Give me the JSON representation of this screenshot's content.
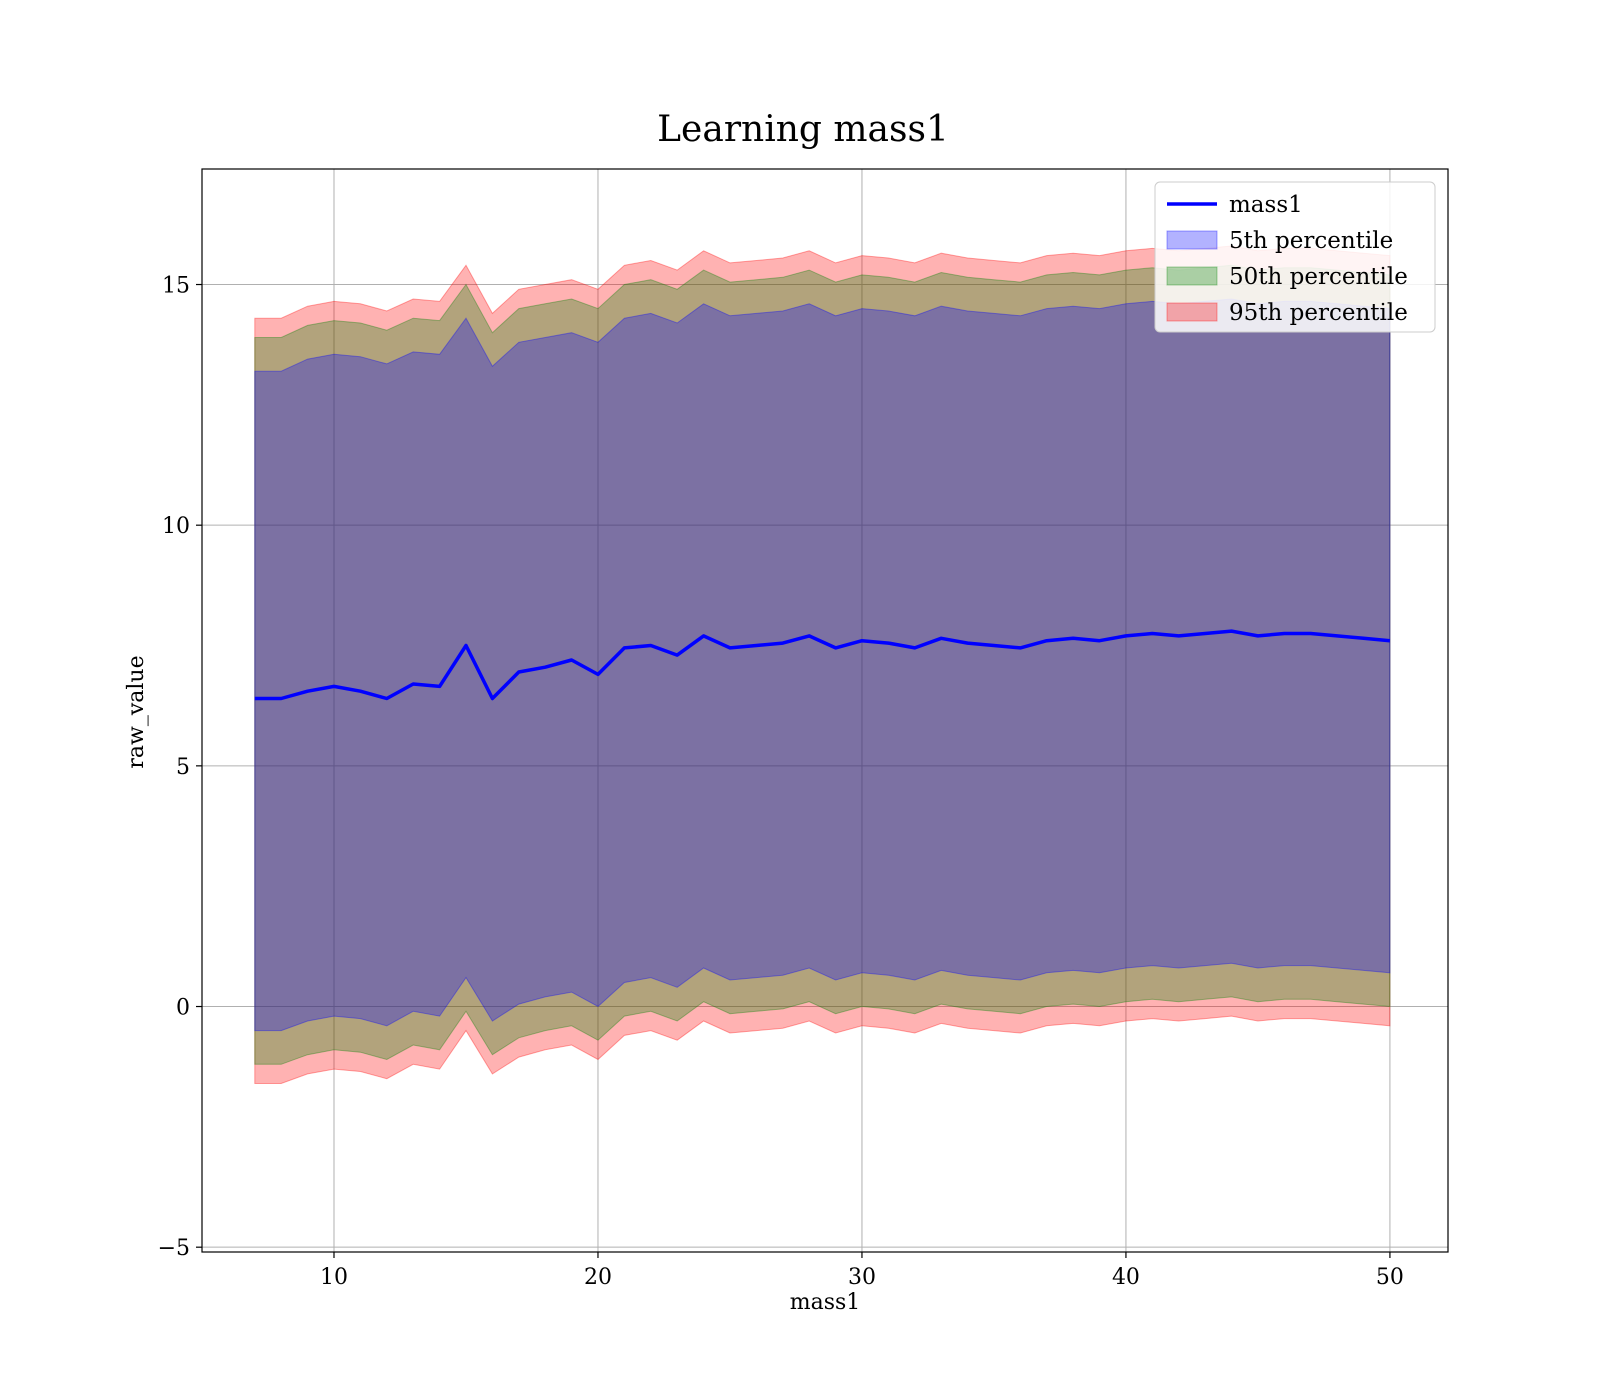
{
  "chart_data": {
    "type": "line",
    "title": "Learning mass1",
    "xlabel": "mass1",
    "ylabel": "raw_value",
    "xlim": [
      5,
      52.2
    ],
    "ylim": [
      -5.1,
      17.4
    ],
    "xticks": [
      10,
      20,
      30,
      40,
      50
    ],
    "xtick_labels": [
      "10",
      "20",
      "30",
      "40",
      "50"
    ],
    "yticks": [
      -5,
      0,
      5,
      10,
      15
    ],
    "ytick_labels": [
      "−5",
      "0",
      "5",
      "10",
      "15"
    ],
    "grid": true,
    "legend_position": "top-right",
    "series": [
      {
        "name": "mass1",
        "kind": "line",
        "color": "#0000ff",
        "x": [
          7,
          8,
          9,
          10,
          11,
          12,
          13,
          14,
          15,
          16,
          17,
          18,
          19,
          20,
          21,
          22,
          23,
          24,
          25,
          26,
          27,
          28,
          29,
          30,
          31,
          32,
          33,
          34,
          35,
          36,
          37,
          38,
          39,
          40,
          41,
          42,
          43,
          44,
          45,
          46,
          47,
          48,
          49,
          50
        ],
        "values": [
          6.4,
          6.4,
          6.55,
          6.65,
          6.55,
          6.4,
          6.7,
          6.65,
          7.5,
          6.4,
          6.95,
          7.05,
          7.2,
          6.9,
          7.45,
          7.5,
          7.3,
          7.7,
          7.45,
          7.5,
          7.55,
          7.7,
          7.45,
          7.6,
          7.55,
          7.45,
          7.65,
          7.55,
          7.5,
          7.45,
          7.6,
          7.65,
          7.6,
          7.7,
          7.75,
          7.7,
          7.75,
          7.8,
          7.7,
          7.75,
          7.75,
          7.7,
          7.65,
          7.6
        ]
      },
      {
        "name": "5th percentile",
        "kind": "band",
        "color": "#0000ff",
        "x": [
          7,
          8,
          9,
          10,
          11,
          12,
          13,
          14,
          15,
          16,
          17,
          18,
          19,
          20,
          21,
          22,
          23,
          24,
          25,
          26,
          27,
          28,
          29,
          30,
          31,
          32,
          33,
          34,
          35,
          36,
          37,
          38,
          39,
          40,
          41,
          42,
          43,
          44,
          45,
          46,
          47,
          48,
          49,
          50
        ],
        "lower": [
          -0.5,
          -0.5,
          -0.3,
          -0.2,
          -0.25,
          -0.4,
          -0.1,
          -0.2,
          0.6,
          -0.3,
          0.05,
          0.2,
          0.3,
          0.0,
          0.5,
          0.6,
          0.4,
          0.8,
          0.55,
          0.6,
          0.65,
          0.8,
          0.55,
          0.7,
          0.65,
          0.55,
          0.75,
          0.65,
          0.6,
          0.55,
          0.7,
          0.75,
          0.7,
          0.8,
          0.85,
          0.8,
          0.85,
          0.9,
          0.8,
          0.85,
          0.85,
          0.8,
          0.75,
          0.7
        ],
        "upper": [
          13.2,
          13.2,
          13.45,
          13.55,
          13.5,
          13.35,
          13.6,
          13.55,
          14.3,
          13.3,
          13.8,
          13.9,
          14.0,
          13.8,
          14.3,
          14.4,
          14.2,
          14.6,
          14.35,
          14.4,
          14.45,
          14.6,
          14.35,
          14.5,
          14.45,
          14.35,
          14.55,
          14.45,
          14.4,
          14.35,
          14.5,
          14.55,
          14.5,
          14.6,
          14.65,
          14.6,
          14.65,
          14.7,
          14.6,
          14.65,
          14.65,
          14.6,
          14.55,
          14.5
        ]
      },
      {
        "name": "50th percentile",
        "kind": "band",
        "color": "#008000",
        "x": [
          7,
          8,
          9,
          10,
          11,
          12,
          13,
          14,
          15,
          16,
          17,
          18,
          19,
          20,
          21,
          22,
          23,
          24,
          25,
          26,
          27,
          28,
          29,
          30,
          31,
          32,
          33,
          34,
          35,
          36,
          37,
          38,
          39,
          40,
          41,
          42,
          43,
          44,
          45,
          46,
          47,
          48,
          49,
          50
        ],
        "lower": [
          -1.2,
          -1.2,
          -1.0,
          -0.9,
          -0.95,
          -1.1,
          -0.8,
          -0.9,
          -0.1,
          -1.0,
          -0.65,
          -0.5,
          -0.4,
          -0.7,
          -0.2,
          -0.1,
          -0.3,
          0.1,
          -0.15,
          -0.1,
          -0.05,
          0.1,
          -0.15,
          0.0,
          -0.05,
          -0.15,
          0.05,
          -0.05,
          -0.1,
          -0.15,
          0.0,
          0.05,
          0.0,
          0.1,
          0.15,
          0.1,
          0.15,
          0.2,
          0.1,
          0.15,
          0.15,
          0.1,
          0.05,
          0.0
        ],
        "upper": [
          13.9,
          13.9,
          14.15,
          14.25,
          14.2,
          14.05,
          14.3,
          14.25,
          15.0,
          14.0,
          14.5,
          14.6,
          14.7,
          14.5,
          15.0,
          15.1,
          14.9,
          15.3,
          15.05,
          15.1,
          15.15,
          15.3,
          15.05,
          15.2,
          15.15,
          15.05,
          15.25,
          15.15,
          15.1,
          15.05,
          15.2,
          15.25,
          15.2,
          15.3,
          15.35,
          15.3,
          15.35,
          15.4,
          15.3,
          15.35,
          15.35,
          15.3,
          15.25,
          15.2
        ]
      },
      {
        "name": "95th percentile",
        "kind": "band",
        "color": "#ff0000",
        "x": [
          7,
          8,
          9,
          10,
          11,
          12,
          13,
          14,
          15,
          16,
          17,
          18,
          19,
          20,
          21,
          22,
          23,
          24,
          25,
          26,
          27,
          28,
          29,
          30,
          31,
          32,
          33,
          34,
          35,
          36,
          37,
          38,
          39,
          40,
          41,
          42,
          43,
          44,
          45,
          46,
          47,
          48,
          49,
          50
        ],
        "lower": [
          -1.6,
          -1.6,
          -1.4,
          -1.3,
          -1.35,
          -1.5,
          -1.2,
          -1.3,
          -0.5,
          -1.4,
          -1.05,
          -0.9,
          -0.8,
          -1.1,
          -0.6,
          -0.5,
          -0.7,
          -0.3,
          -0.55,
          -0.5,
          -0.45,
          -0.3,
          -0.55,
          -0.4,
          -0.45,
          -0.55,
          -0.35,
          -0.45,
          -0.5,
          -0.55,
          -0.4,
          -0.35,
          -0.4,
          -0.3,
          -0.25,
          -0.3,
          -0.25,
          -0.2,
          -0.3,
          -0.25,
          -0.25,
          -0.3,
          -0.35,
          -0.4
        ],
        "upper": [
          14.3,
          14.3,
          14.55,
          14.65,
          14.6,
          14.45,
          14.7,
          14.65,
          15.4,
          14.4,
          14.9,
          15.0,
          15.1,
          14.9,
          15.4,
          15.5,
          15.3,
          15.7,
          15.45,
          15.5,
          15.55,
          15.7,
          15.45,
          15.6,
          15.55,
          15.45,
          15.65,
          15.55,
          15.5,
          15.45,
          15.6,
          15.65,
          15.6,
          15.7,
          15.75,
          15.7,
          15.75,
          15.8,
          15.7,
          15.75,
          15.75,
          15.7,
          15.65,
          15.6
        ]
      }
    ]
  }
}
